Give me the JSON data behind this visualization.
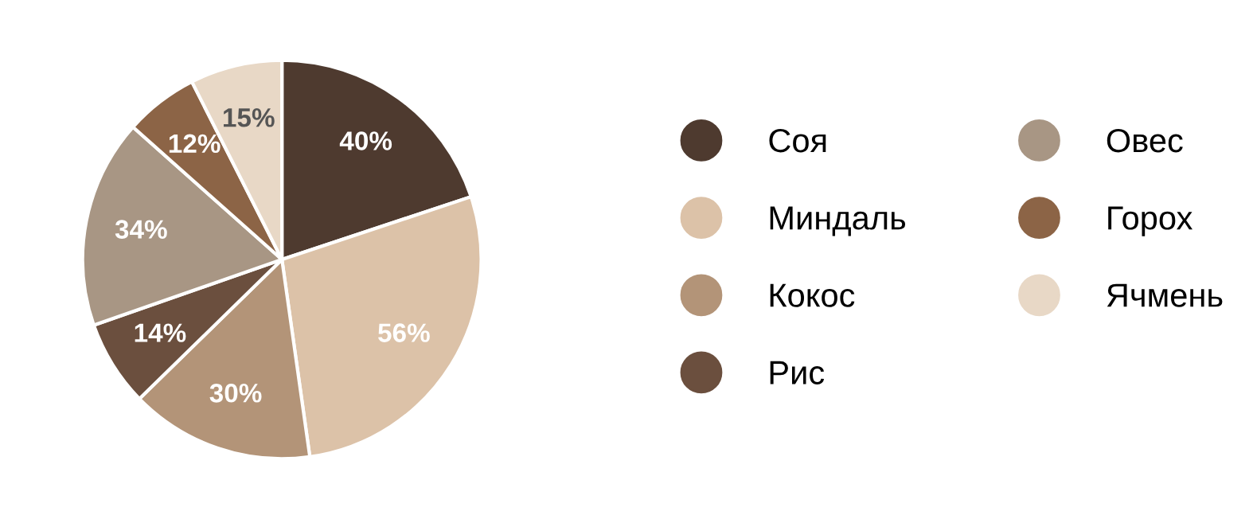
{
  "chart_data": {
    "type": "pie",
    "categories": [
      "Соя",
      "Миндаль",
      "Кокос",
      "Рис",
      "Овес",
      "Горох",
      "Ячмень"
    ],
    "values": [
      40,
      56,
      30,
      14,
      34,
      12,
      15
    ],
    "value_labels": [
      "40%",
      "56%",
      "30%",
      "14%",
      "34%",
      "12%",
      "15%"
    ],
    "colors": [
      "#4e3a2f",
      "#dcc2a8",
      "#b39478",
      "#6b4f3e",
      "#a89684",
      "#8c6446",
      "#e8d8c6"
    ],
    "legend": "right"
  }
}
